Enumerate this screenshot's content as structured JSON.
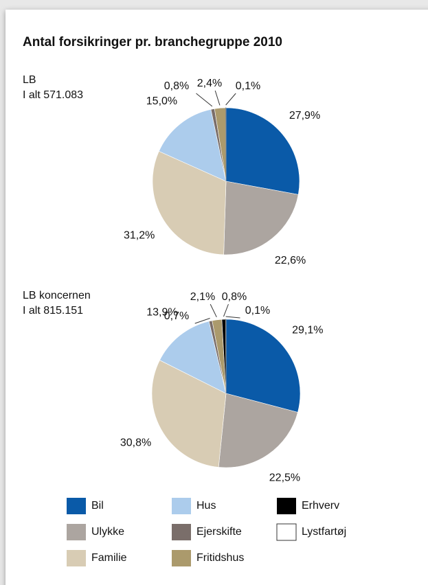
{
  "title": "Antal forsikringer pr. branchegruppe 2010",
  "chart_data": [
    {
      "type": "pie",
      "subtitle": [
        "LB",
        "I alt 571.083"
      ],
      "categories": [
        "Bil",
        "Ulykke",
        "Familie",
        "Hus",
        "Ejerskifte",
        "Fritidshus",
        "Lystfartøj"
      ],
      "values": [
        27.9,
        22.6,
        31.2,
        15.0,
        0.8,
        2.4,
        0.1
      ],
      "value_labels": [
        "27,9%",
        "22,6%",
        "31,2%",
        "15,0%",
        "0,8%",
        "2,4%",
        "0,1%"
      ],
      "colors": [
        "#0a5aa8",
        "#aca5a0",
        "#d8ccb4",
        "#acccec",
        "#7a6e6a",
        "#ab9a6c",
        "#ffffff"
      ]
    },
    {
      "type": "pie",
      "subtitle": [
        "LB koncernen",
        "I alt 815.151"
      ],
      "categories": [
        "Bil",
        "Ulykke",
        "Familie",
        "Hus",
        "Ejerskifte",
        "Fritidshus",
        "Erhverv",
        "Lystfartøj"
      ],
      "values": [
        29.1,
        22.5,
        30.8,
        13.9,
        0.7,
        2.1,
        0.8,
        0.1
      ],
      "value_labels": [
        "29,1%",
        "22,5%",
        "30,8%",
        "13,9%",
        "0,7%",
        "2,1%",
        "0,8%",
        "0,1%"
      ],
      "colors": [
        "#0a5aa8",
        "#aca5a0",
        "#d8ccb4",
        "#acccec",
        "#7a6e6a",
        "#ab9a6c",
        "#000000",
        "#ffffff"
      ]
    }
  ]
}
